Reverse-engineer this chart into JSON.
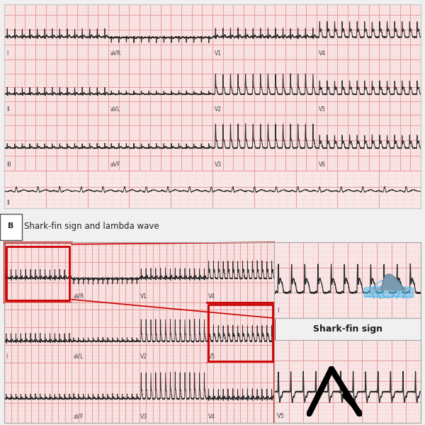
{
  "bg_color": "#f9e8e8",
  "grid_major_color": "#e8a0a0",
  "grid_minor_color": "#f5d0d0",
  "ecg_color": "#2a2a2a",
  "highlight_color": "#cc0000",
  "outer_bg": "#f0f0f0",
  "white": "#ffffff",
  "panel_b_label": "B",
  "panel_b_title": "Shark-fin sign and lambda wave",
  "shark_fin_sign_text": "Shark-fin sign",
  "v5_text": "V5",
  "I_text": "I",
  "lead_labels_row1": [
    "I",
    "aVR",
    "V1",
    "V4"
  ],
  "lead_labels_row2": [
    "II",
    "aVL",
    "V2",
    "V5"
  ],
  "lead_labels_row3": [
    "III",
    "aVF",
    "V3",
    "V6"
  ],
  "lead_label_rhythm": "II"
}
